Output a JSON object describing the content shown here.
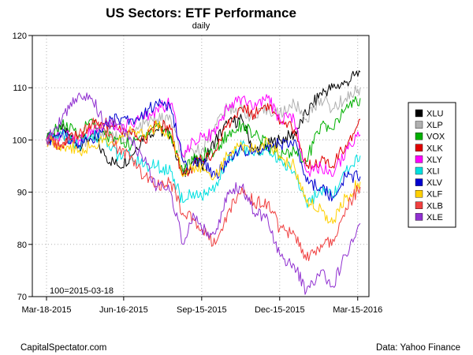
{
  "chart_data": {
    "type": "line",
    "title": "US Sectors: ETF Performance",
    "subtitle": "daily",
    "annotation": "100=2015-03-18",
    "source_left": "CapitalSpectator.com",
    "source_right": "Data: Yahoo Finance",
    "ylim": [
      70,
      120
    ],
    "yticks": [
      70,
      80,
      90,
      100,
      110,
      120
    ],
    "x_range": [
      "2015-03-18",
      "2016-03-18"
    ],
    "x_ticks": [
      {
        "date": "2015-03-18",
        "label": "Mar-18-2015"
      },
      {
        "date": "2015-06-16",
        "label": "Jun-16-2015"
      },
      {
        "date": "2015-09-15",
        "label": "Sep-15-2015"
      },
      {
        "date": "2015-12-15",
        "label": "Dec-15-2015"
      },
      {
        "date": "2016-03-15",
        "label": "Mar-15-2016"
      }
    ],
    "grid": true,
    "legend_position": "right",
    "series": [
      {
        "name": "XLU",
        "color": "#000000",
        "points": [
          [
            "2015-03-18",
            100
          ],
          [
            "2015-04-05",
            102
          ],
          [
            "2015-04-25",
            99
          ],
          [
            "2015-05-10",
            101
          ],
          [
            "2015-05-25",
            97
          ],
          [
            "2015-06-10",
            95
          ],
          [
            "2015-06-25",
            97
          ],
          [
            "2015-07-10",
            101
          ],
          [
            "2015-07-25",
            102
          ],
          [
            "2015-08-10",
            101
          ],
          [
            "2015-08-24",
            93
          ],
          [
            "2015-09-05",
            96
          ],
          [
            "2015-09-15",
            95
          ],
          [
            "2015-10-01",
            100
          ],
          [
            "2015-10-15",
            103
          ],
          [
            "2015-11-01",
            104
          ],
          [
            "2015-11-15",
            98
          ],
          [
            "2015-12-01",
            99
          ],
          [
            "2015-12-15",
            100
          ],
          [
            "2016-01-01",
            101
          ],
          [
            "2016-01-15",
            105
          ],
          [
            "2016-02-01",
            109
          ],
          [
            "2016-02-15",
            110
          ],
          [
            "2016-03-01",
            111
          ],
          [
            "2016-03-18",
            113
          ]
        ]
      },
      {
        "name": "XLP",
        "color": "#b0b0b0",
        "points": [
          [
            "2015-03-18",
            100
          ],
          [
            "2015-04-05",
            101
          ],
          [
            "2015-04-25",
            99
          ],
          [
            "2015-05-10",
            100
          ],
          [
            "2015-05-25",
            102
          ],
          [
            "2015-06-10",
            100
          ],
          [
            "2015-06-25",
            101
          ],
          [
            "2015-07-10",
            103
          ],
          [
            "2015-07-25",
            104
          ],
          [
            "2015-08-10",
            104
          ],
          [
            "2015-08-24",
            96
          ],
          [
            "2015-09-05",
            98
          ],
          [
            "2015-09-15",
            98
          ],
          [
            "2015-10-01",
            103
          ],
          [
            "2015-10-15",
            106
          ],
          [
            "2015-11-01",
            106
          ],
          [
            "2015-11-15",
            104
          ],
          [
            "2015-12-01",
            106
          ],
          [
            "2015-12-15",
            105
          ],
          [
            "2016-01-01",
            107
          ],
          [
            "2016-01-15",
            104
          ],
          [
            "2016-02-01",
            108
          ],
          [
            "2016-02-15",
            106
          ],
          [
            "2016-03-01",
            108
          ],
          [
            "2016-03-18",
            110
          ]
        ]
      },
      {
        "name": "VOX",
        "color": "#00b000",
        "points": [
          [
            "2015-03-18",
            100
          ],
          [
            "2015-04-05",
            103
          ],
          [
            "2015-04-25",
            101
          ],
          [
            "2015-05-10",
            104
          ],
          [
            "2015-05-25",
            101
          ],
          [
            "2015-06-10",
            100
          ],
          [
            "2015-06-25",
            99
          ],
          [
            "2015-07-10",
            101
          ],
          [
            "2015-07-25",
            103
          ],
          [
            "2015-08-10",
            101
          ],
          [
            "2015-08-24",
            94
          ],
          [
            "2015-09-05",
            96
          ],
          [
            "2015-09-15",
            97
          ],
          [
            "2015-10-01",
            98
          ],
          [
            "2015-10-15",
            101
          ],
          [
            "2015-11-01",
            103
          ],
          [
            "2015-11-15",
            101
          ],
          [
            "2015-12-01",
            99
          ],
          [
            "2015-12-15",
            97
          ],
          [
            "2016-01-01",
            98
          ],
          [
            "2016-01-15",
            96
          ],
          [
            "2016-02-01",
            103
          ],
          [
            "2016-02-15",
            102
          ],
          [
            "2016-03-01",
            106
          ],
          [
            "2016-03-18",
            108
          ]
        ]
      },
      {
        "name": "XLK",
        "color": "#e00000",
        "points": [
          [
            "2015-03-18",
            100
          ],
          [
            "2015-04-05",
            99
          ],
          [
            "2015-04-25",
            101
          ],
          [
            "2015-05-10",
            103
          ],
          [
            "2015-05-25",
            103
          ],
          [
            "2015-06-10",
            102
          ],
          [
            "2015-06-25",
            101
          ],
          [
            "2015-07-10",
            100
          ],
          [
            "2015-07-25",
            103
          ],
          [
            "2015-08-10",
            102
          ],
          [
            "2015-08-24",
            93
          ],
          [
            "2015-09-05",
            95
          ],
          [
            "2015-09-15",
            96
          ],
          [
            "2015-10-01",
            98
          ],
          [
            "2015-10-15",
            103
          ],
          [
            "2015-11-01",
            106
          ],
          [
            "2015-11-15",
            105
          ],
          [
            "2015-12-01",
            107
          ],
          [
            "2015-12-15",
            103
          ],
          [
            "2016-01-01",
            102
          ],
          [
            "2016-01-15",
            95
          ],
          [
            "2016-02-01",
            96
          ],
          [
            "2016-02-15",
            95
          ],
          [
            "2016-03-01",
            99
          ],
          [
            "2016-03-18",
            104
          ]
        ]
      },
      {
        "name": "XLY",
        "color": "#ff00ff",
        "points": [
          [
            "2015-03-18",
            100
          ],
          [
            "2015-04-05",
            101
          ],
          [
            "2015-04-25",
            100
          ],
          [
            "2015-05-10",
            102
          ],
          [
            "2015-05-25",
            103
          ],
          [
            "2015-06-10",
            102
          ],
          [
            "2015-06-25",
            103
          ],
          [
            "2015-07-10",
            104
          ],
          [
            "2015-07-25",
            106
          ],
          [
            "2015-08-10",
            107
          ],
          [
            "2015-08-24",
            97
          ],
          [
            "2015-09-05",
            100
          ],
          [
            "2015-09-15",
            101
          ],
          [
            "2015-10-01",
            101
          ],
          [
            "2015-10-15",
            106
          ],
          [
            "2015-11-01",
            108
          ],
          [
            "2015-11-15",
            106
          ],
          [
            "2015-12-01",
            108
          ],
          [
            "2015-12-15",
            104
          ],
          [
            "2016-01-01",
            104
          ],
          [
            "2016-01-15",
            94
          ],
          [
            "2016-02-01",
            95
          ],
          [
            "2016-02-15",
            93
          ],
          [
            "2016-03-01",
            98
          ],
          [
            "2016-03-18",
            101
          ]
        ]
      },
      {
        "name": "XLI",
        "color": "#00e0e0",
        "points": [
          [
            "2015-03-18",
            100
          ],
          [
            "2015-04-05",
            101
          ],
          [
            "2015-04-25",
            99
          ],
          [
            "2015-05-10",
            101
          ],
          [
            "2015-05-25",
            100
          ],
          [
            "2015-06-10",
            97
          ],
          [
            "2015-06-25",
            97
          ],
          [
            "2015-07-10",
            95
          ],
          [
            "2015-07-25",
            95
          ],
          [
            "2015-08-10",
            94
          ],
          [
            "2015-08-24",
            88
          ],
          [
            "2015-09-05",
            90
          ],
          [
            "2015-09-15",
            89
          ],
          [
            "2015-10-01",
            91
          ],
          [
            "2015-10-15",
            96
          ],
          [
            "2015-11-01",
            99
          ],
          [
            "2015-11-15",
            97
          ],
          [
            "2015-12-01",
            98
          ],
          [
            "2015-12-15",
            96
          ],
          [
            "2016-01-01",
            94
          ],
          [
            "2016-01-15",
            88
          ],
          [
            "2016-02-01",
            90
          ],
          [
            "2016-02-15",
            89
          ],
          [
            "2016-03-01",
            94
          ],
          [
            "2016-03-18",
            97
          ]
        ]
      },
      {
        "name": "XLV",
        "color": "#0000d0",
        "points": [
          [
            "2015-03-18",
            100
          ],
          [
            "2015-04-05",
            101
          ],
          [
            "2015-04-25",
            99
          ],
          [
            "2015-05-10",
            100
          ],
          [
            "2015-05-25",
            103
          ],
          [
            "2015-06-10",
            104
          ],
          [
            "2015-06-25",
            104
          ],
          [
            "2015-07-10",
            105
          ],
          [
            "2015-07-25",
            107
          ],
          [
            "2015-08-10",
            106
          ],
          [
            "2015-08-24",
            96
          ],
          [
            "2015-09-05",
            95
          ],
          [
            "2015-09-15",
            96
          ],
          [
            "2015-10-01",
            93
          ],
          [
            "2015-10-15",
            96
          ],
          [
            "2015-11-01",
            98
          ],
          [
            "2015-11-15",
            98
          ],
          [
            "2015-12-01",
            99
          ],
          [
            "2015-12-15",
            99
          ],
          [
            "2016-01-01",
            100
          ],
          [
            "2016-01-15",
            92
          ],
          [
            "2016-02-01",
            91
          ],
          [
            "2016-02-15",
            89
          ],
          [
            "2016-03-01",
            93
          ],
          [
            "2016-03-18",
            93
          ]
        ]
      },
      {
        "name": "XLF",
        "color": "#ffd000",
        "points": [
          [
            "2015-03-18",
            100
          ],
          [
            "2015-04-05",
            99
          ],
          [
            "2015-04-25",
            98
          ],
          [
            "2015-05-10",
            99
          ],
          [
            "2015-05-25",
            100
          ],
          [
            "2015-06-10",
            100
          ],
          [
            "2015-06-25",
            102
          ],
          [
            "2015-07-10",
            101
          ],
          [
            "2015-07-25",
            103
          ],
          [
            "2015-08-10",
            101
          ],
          [
            "2015-08-24",
            93
          ],
          [
            "2015-09-05",
            95
          ],
          [
            "2015-09-15",
            95
          ],
          [
            "2015-10-01",
            93
          ],
          [
            "2015-10-15",
            97
          ],
          [
            "2015-11-01",
            99
          ],
          [
            "2015-11-15",
            98
          ],
          [
            "2015-12-01",
            100
          ],
          [
            "2015-12-15",
            97
          ],
          [
            "2016-01-01",
            95
          ],
          [
            "2016-01-15",
            88
          ],
          [
            "2016-02-01",
            87
          ],
          [
            "2016-02-15",
            84
          ],
          [
            "2016-03-01",
            89
          ],
          [
            "2016-03-18",
            92
          ]
        ]
      },
      {
        "name": "XLB",
        "color": "#f04040",
        "points": [
          [
            "2015-03-18",
            100
          ],
          [
            "2015-04-05",
            99
          ],
          [
            "2015-04-25",
            101
          ],
          [
            "2015-05-10",
            103
          ],
          [
            "2015-05-25",
            102
          ],
          [
            "2015-06-10",
            98
          ],
          [
            "2015-06-25",
            97
          ],
          [
            "2015-07-10",
            93
          ],
          [
            "2015-07-25",
            91
          ],
          [
            "2015-08-10",
            92
          ],
          [
            "2015-08-24",
            86
          ],
          [
            "2015-09-05",
            85
          ],
          [
            "2015-09-15",
            83
          ],
          [
            "2015-10-01",
            80
          ],
          [
            "2015-10-15",
            86
          ],
          [
            "2015-11-01",
            91
          ],
          [
            "2015-11-15",
            88
          ],
          [
            "2015-12-01",
            88
          ],
          [
            "2015-12-15",
            83
          ],
          [
            "2016-01-01",
            82
          ],
          [
            "2016-01-15",
            77
          ],
          [
            "2016-02-01",
            80
          ],
          [
            "2016-02-15",
            81
          ],
          [
            "2016-03-01",
            87
          ],
          [
            "2016-03-18",
            91
          ]
        ]
      },
      {
        "name": "XLE",
        "color": "#9030d0",
        "points": [
          [
            "2015-03-18",
            100
          ],
          [
            "2015-04-05",
            104
          ],
          [
            "2015-04-25",
            109
          ],
          [
            "2015-05-10",
            108
          ],
          [
            "2015-05-25",
            103
          ],
          [
            "2015-06-10",
            103
          ],
          [
            "2015-06-25",
            100
          ],
          [
            "2015-07-10",
            96
          ],
          [
            "2015-07-25",
            91
          ],
          [
            "2015-08-10",
            90
          ],
          [
            "2015-08-24",
            80
          ],
          [
            "2015-09-05",
            86
          ],
          [
            "2015-09-15",
            83
          ],
          [
            "2015-10-01",
            82
          ],
          [
            "2015-10-15",
            90
          ],
          [
            "2015-11-01",
            91
          ],
          [
            "2015-11-15",
            86
          ],
          [
            "2015-12-01",
            85
          ],
          [
            "2015-12-15",
            78
          ],
          [
            "2016-01-01",
            76
          ],
          [
            "2016-01-15",
            71
          ],
          [
            "2016-02-01",
            75
          ],
          [
            "2016-02-15",
            72
          ],
          [
            "2016-03-01",
            78
          ],
          [
            "2016-03-18",
            84
          ]
        ]
      }
    ]
  }
}
